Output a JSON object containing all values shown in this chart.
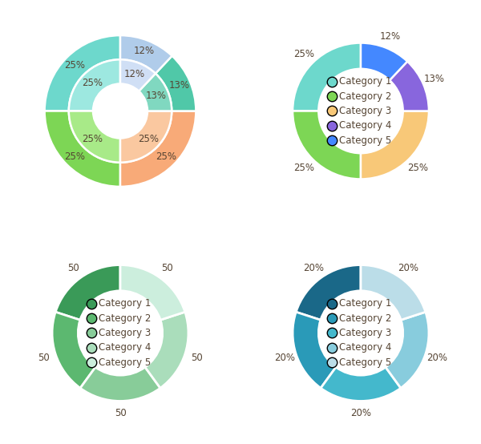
{
  "chart1": {
    "values": [
      25,
      25,
      25,
      13,
      12
    ],
    "outer_colors": [
      "#6DD8CC",
      "#7DD655",
      "#F8AA78",
      "#50C8A8",
      "#B0CCEA"
    ],
    "inner_colors": [
      "#9DE8E0",
      "#A8EA88",
      "#FAC8A0",
      "#80D8C0",
      "#D0DFF5"
    ],
    "start_angle": 90
  },
  "chart2": {
    "values": [
      25,
      25,
      25,
      13,
      12
    ],
    "colors": [
      "#6DD8CC",
      "#7DD655",
      "#F8C878",
      "#8866DD",
      "#4488FF"
    ],
    "start_angle": 90,
    "legend_labels": [
      "Category 1",
      "Category 2",
      "Category 3",
      "Category 4",
      "Category 5"
    ]
  },
  "chart3": {
    "values": [
      20,
      20,
      20,
      20,
      20
    ],
    "colors": [
      "#3A9A58",
      "#5CB870",
      "#88CC99",
      "#AADDBB",
      "#CCEEDD"
    ],
    "labels": [
      "50",
      "50",
      "50",
      "50",
      "50"
    ],
    "start_angle": 90,
    "legend_labels": [
      "Category 1",
      "Category 2",
      "Category 3",
      "Category 4",
      "Category 5"
    ]
  },
  "chart4": {
    "values": [
      20,
      20,
      20,
      20,
      20
    ],
    "colors": [
      "#1A6888",
      "#2A9AB8",
      "#44B8CC",
      "#88CCDD",
      "#BBDDE8"
    ],
    "labels": [
      "20%",
      "20%",
      "20%",
      "20%",
      "20%"
    ],
    "start_angle": 90,
    "legend_labels": [
      "Category 1",
      "Category 2",
      "Category 3",
      "Category 4",
      "Category 5"
    ]
  },
  "text_color": "#554433",
  "label_fontsize": 8.5,
  "legend_fontsize": 8.5,
  "bg_color": "#ffffff"
}
